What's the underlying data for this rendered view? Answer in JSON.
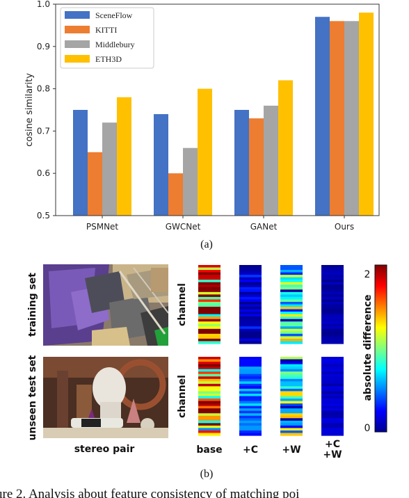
{
  "chart_data": [
    {
      "type": "bar",
      "panel_label": "(a)",
      "ylabel": "cosine similarity",
      "ylim": [
        0.5,
        1.0
      ],
      "yticks": [
        "0.5",
        "0.6",
        "0.7",
        "0.8",
        "0.9",
        "1.0"
      ],
      "ytick_values": [
        0.5,
        0.6,
        0.7,
        0.8,
        0.9,
        1.0
      ],
      "categories": [
        "PSMNet",
        "GWCNet",
        "GANet",
        "Ours"
      ],
      "legend_position": "top-left",
      "series": [
        {
          "name": "SceneFlow",
          "color": "#4472c4",
          "values": [
            0.75,
            0.74,
            0.75,
            0.97
          ]
        },
        {
          "name": "KITTI",
          "color": "#ed7d31",
          "values": [
            0.65,
            0.6,
            0.73,
            0.96
          ]
        },
        {
          "name": "Middlebury",
          "color": "#a5a5a5",
          "values": [
            0.72,
            0.66,
            0.76,
            0.96
          ]
        },
        {
          "name": "ETH3D",
          "color": "#ffc000",
          "values": [
            0.78,
            0.8,
            0.82,
            0.98
          ]
        }
      ]
    },
    {
      "type": "heatmap",
      "panel_label": "(b)",
      "rows": [
        "training set",
        "unseen test set"
      ],
      "columns": [
        "base",
        "+C",
        "+W",
        "+C\n+W"
      ],
      "column_lines": [
        [
          "base"
        ],
        [
          "+C"
        ],
        [
          "+W"
        ],
        [
          "+C",
          "+W"
        ]
      ],
      "ylabel": "channel",
      "image_caption": "stereo pair",
      "colorbar_label": "absolute difference",
      "colorbar_ticks": [
        "2",
        "0"
      ],
      "colorbar_range": [
        0,
        2
      ],
      "colormap": "jet",
      "mean_levels": [
        [
          1.5,
          0.12,
          0.72,
          0.05
        ],
        [
          1.5,
          0.45,
          0.72,
          0.12
        ]
      ]
    }
  ],
  "caption": "ure 2. Analysis about feature consistency of matching poi"
}
